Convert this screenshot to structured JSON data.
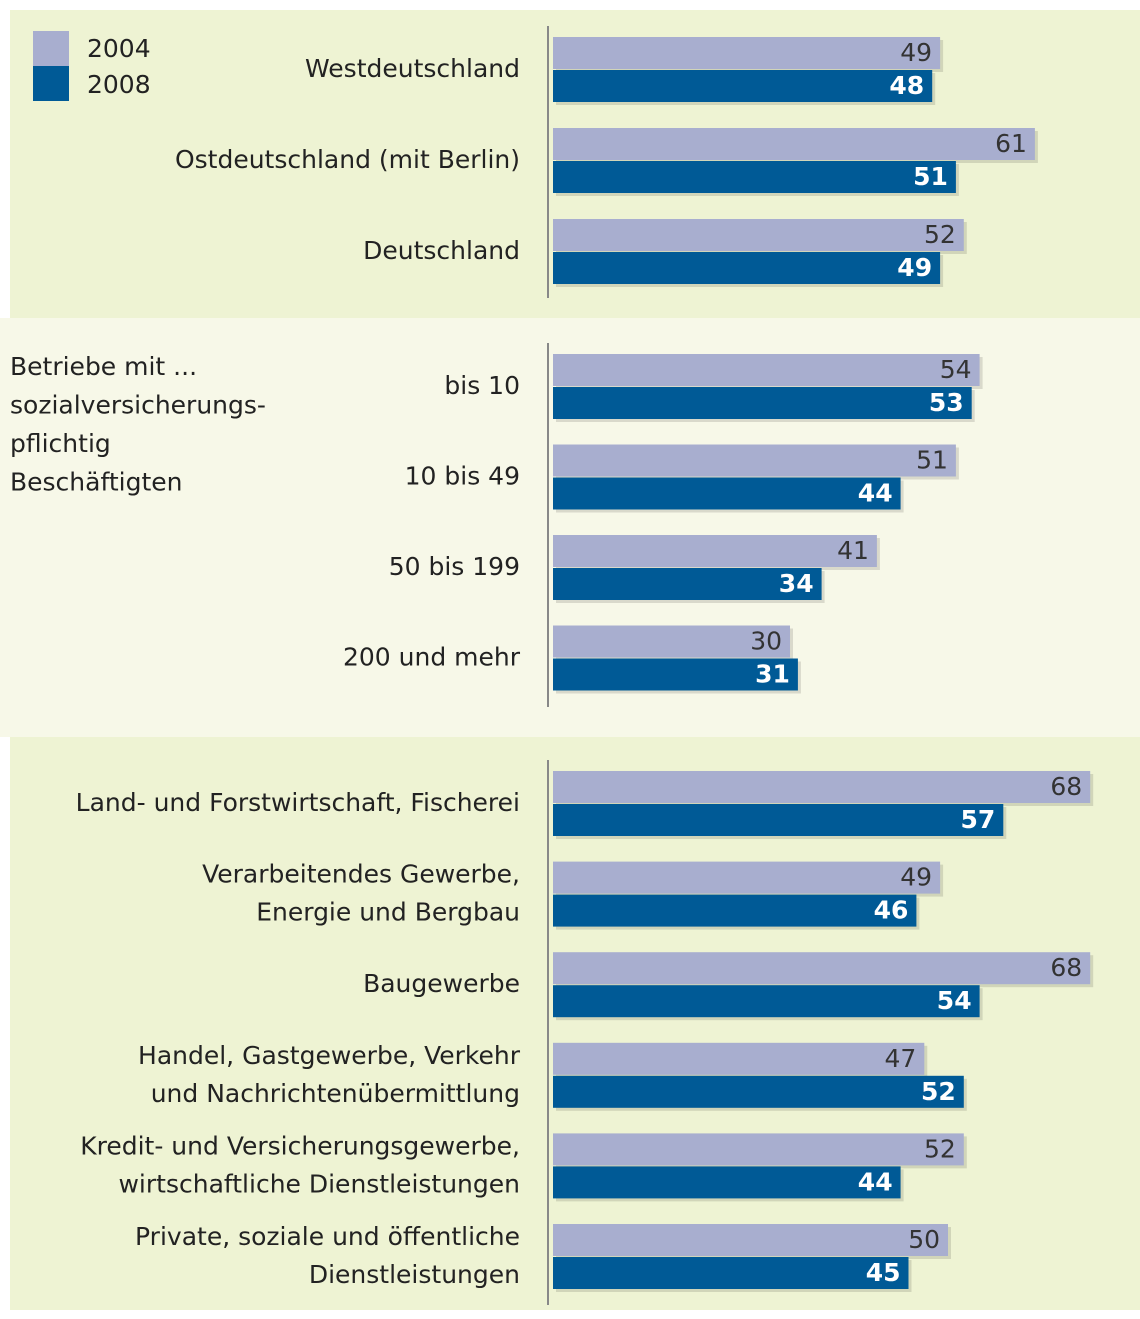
{
  "chart_data": [
    {
      "type": "bar",
      "categories": [
        [
          "Westdeutschland"
        ],
        [
          "Ostdeutschland (mit Berlin)"
        ],
        [
          "Deutschland"
        ]
      ],
      "series": [
        {
          "name": "2004",
          "color": "#a8aecf",
          "values": [
            49,
            61,
            52
          ]
        },
        {
          "name": "2008",
          "color": "#005a96",
          "values": [
            48,
            51,
            49
          ]
        }
      ]
    },
    {
      "type": "bar",
      "annotation": [
        "Betriebe mit ...",
        "sozialversicherungs-",
        "pflichtig",
        "Beschäftigten"
      ],
      "categories": [
        [
          "bis 10"
        ],
        [
          "10 bis 49"
        ],
        [
          "50 bis 199"
        ],
        [
          "200 und mehr"
        ]
      ],
      "series": [
        {
          "color": "#a8aecf",
          "values": [
            54,
            51,
            41,
            30
          ]
        },
        {
          "color": "#005a96",
          "values": [
            53,
            44,
            34,
            31
          ]
        }
      ]
    },
    {
      "type": "bar",
      "categories": [
        [
          "Land- und Forstwirtschaft, Fischerei"
        ],
        [
          "Verarbeitendes Gewerbe,",
          "Energie und Bergbau"
        ],
        [
          "Baugewerbe"
        ],
        [
          "Handel, Gastgewerbe, Verkehr",
          "und Nachrichtenübermittlung"
        ],
        [
          "Kredit- und Versicherungsgewerbe,",
          "wirtschaftliche Dienstleistungen"
        ],
        [
          "Private, soziale und öffentliche",
          "Dienstleistungen"
        ]
      ],
      "series": [
        {
          "color": "#a8aecf",
          "values": [
            68,
            49,
            68,
            47,
            52,
            50
          ]
        },
        {
          "color": "#005a96",
          "values": [
            57,
            46,
            54,
            52,
            44,
            45
          ]
        }
      ]
    }
  ]
}
